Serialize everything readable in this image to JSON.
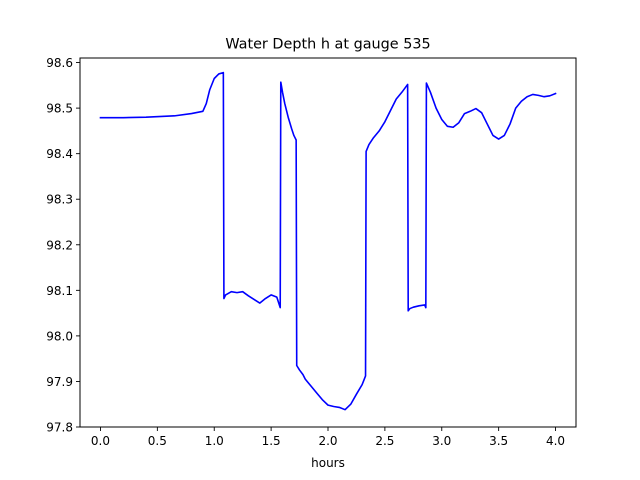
{
  "chart_data": {
    "type": "line",
    "title": "Water Depth h at gauge 535",
    "xlabel": "hours",
    "ylabel": "",
    "xlim": [
      -0.18,
      4.18
    ],
    "ylim": [
      97.8,
      98.61
    ],
    "xticks": [
      0.0,
      0.5,
      1.0,
      1.5,
      2.0,
      2.5,
      3.0,
      3.5,
      4.0
    ],
    "xtick_labels": [
      "0.0",
      "0.5",
      "1.0",
      "1.5",
      "2.0",
      "2.5",
      "3.0",
      "3.5",
      "4.0"
    ],
    "yticks": [
      97.8,
      97.9,
      98.0,
      98.1,
      98.2,
      98.3,
      98.4,
      98.5,
      98.6
    ],
    "ytick_labels": [
      "97.8",
      "97.9",
      "98.0",
      "98.1",
      "98.2",
      "98.3",
      "98.4",
      "98.5",
      "98.6"
    ],
    "grid": false,
    "series": [
      {
        "color": "#0000ff",
        "x": [
          0.0,
          0.2,
          0.4,
          0.65,
          0.8,
          0.9,
          0.93,
          0.96,
          1.0,
          1.04,
          1.08,
          1.085,
          1.1,
          1.15,
          1.2,
          1.25,
          1.3,
          1.35,
          1.4,
          1.45,
          1.5,
          1.55,
          1.58,
          1.585,
          1.59,
          1.6,
          1.62,
          1.65,
          1.68,
          1.7,
          1.72,
          1.725,
          1.75,
          1.78,
          1.8,
          1.85,
          1.9,
          1.95,
          2.0,
          2.05,
          2.1,
          2.15,
          2.2,
          2.25,
          2.3,
          2.33,
          2.335,
          2.36,
          2.4,
          2.45,
          2.5,
          2.55,
          2.6,
          2.65,
          2.7,
          2.705,
          2.72,
          2.75,
          2.8,
          2.85,
          2.86,
          2.865,
          2.9,
          2.95,
          3.0,
          3.05,
          3.1,
          3.15,
          3.2,
          3.25,
          3.3,
          3.35,
          3.4,
          3.45,
          3.5,
          3.55,
          3.6,
          3.65,
          3.7,
          3.75,
          3.8,
          3.85,
          3.9,
          3.95,
          4.0
        ],
        "y": [
          98.479,
          98.479,
          98.48,
          98.483,
          98.488,
          98.493,
          98.51,
          98.54,
          98.565,
          98.575,
          98.578,
          98.082,
          98.09,
          98.097,
          98.095,
          98.097,
          98.088,
          98.08,
          98.072,
          98.082,
          98.09,
          98.085,
          98.062,
          98.557,
          98.55,
          98.535,
          98.51,
          98.48,
          98.455,
          98.44,
          98.43,
          97.935,
          97.925,
          97.915,
          97.905,
          97.89,
          97.875,
          97.86,
          97.848,
          97.845,
          97.843,
          97.838,
          97.85,
          97.872,
          97.893,
          97.912,
          98.405,
          98.42,
          98.435,
          98.45,
          98.47,
          98.495,
          98.52,
          98.535,
          98.552,
          98.055,
          98.06,
          98.063,
          98.066,
          98.068,
          98.062,
          98.555,
          98.535,
          98.5,
          98.475,
          98.46,
          98.458,
          98.468,
          98.488,
          98.493,
          98.499,
          98.49,
          98.465,
          98.44,
          98.432,
          98.44,
          98.465,
          98.5,
          98.515,
          98.525,
          98.53,
          98.528,
          98.525,
          98.527,
          98.532
        ]
      }
    ]
  }
}
